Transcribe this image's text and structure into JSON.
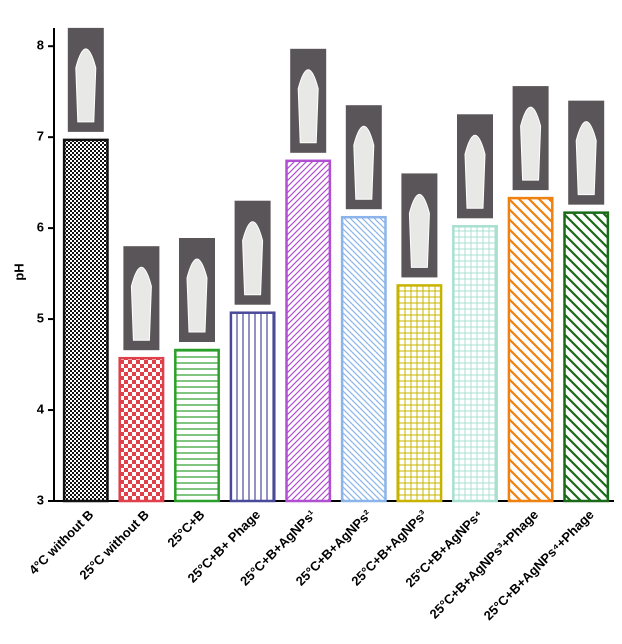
{
  "chart_data": {
    "type": "bar",
    "y_label": "pH",
    "categories": [
      "4°C without B",
      "25°C without B",
      "25°C+B",
      "25°C+B+ Phage",
      "25°C+B+AgNPs¹",
      "25°C+B+AgNPs²",
      "25°C+B+AgNPs³",
      "25°C+B+AgNPs⁴",
      "25°C+B+AgNPs³+Phage",
      "25°C+B+AgNPs⁴+Phage"
    ],
    "values": [
      6.97,
      4.57,
      4.66,
      5.07,
      6.74,
      6.12,
      5.37,
      6.02,
      6.33,
      6.17
    ],
    "colors": [
      "#111111",
      "#e0404a",
      "#2aa02a",
      "#4a4a9a",
      "#b050d0",
      "#8ab4ea",
      "#c8b400",
      "#a8e0d0",
      "#f08010",
      "#1a6a1a"
    ],
    "ylim": [
      3,
      8.2
    ],
    "yticks": [
      3,
      4,
      5,
      6,
      7,
      8
    ]
  }
}
